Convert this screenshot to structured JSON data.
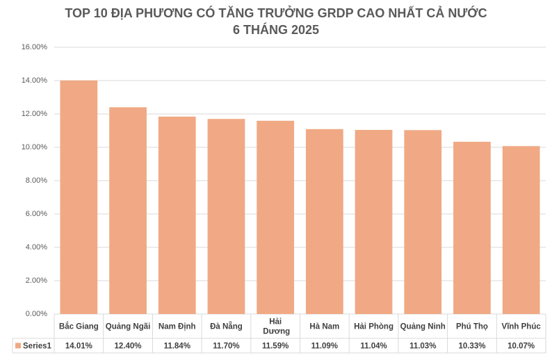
{
  "chart_data": {
    "type": "bar",
    "title": "TOP 10 ĐỊA PHƯƠNG CÓ TĂNG TRƯỞNG GRDP CAO NHẤT CẢ NƯỚC",
    "subtitle": "6 THÁNG 2025",
    "categories": [
      "Bắc Giang",
      "Quảng Ngãi",
      "Nam Định",
      "Đà Nẵng",
      "Hải Dương",
      "Hà Nam",
      "Hải Phòng",
      "Quảng Ninh",
      "Phú Thọ",
      "Vĩnh Phúc"
    ],
    "series": [
      {
        "name": "Series1",
        "color": "#f0a984",
        "values": [
          14.01,
          12.4,
          11.84,
          11.7,
          11.59,
          11.09,
          11.04,
          11.03,
          10.33,
          10.07
        ],
        "value_labels": [
          "14.01%",
          "12.40%",
          "11.84%",
          "11.70%",
          "11.59%",
          "11.09%",
          "11.04%",
          "11.03%",
          "10.33%",
          "10.07%"
        ]
      }
    ],
    "ylim": [
      0,
      16
    ],
    "yticks": [
      {
        "value": 0,
        "label": "0.00%"
      },
      {
        "value": 2,
        "label": "2.00%"
      },
      {
        "value": 4,
        "label": "4.00%"
      },
      {
        "value": 6,
        "label": "6.00%"
      },
      {
        "value": 8,
        "label": "8.00%"
      },
      {
        "value": 10,
        "label": "10.00%"
      },
      {
        "value": 12,
        "label": "12.00%"
      },
      {
        "value": 14,
        "label": "14.00%"
      },
      {
        "value": 16,
        "label": "16.00%"
      }
    ],
    "grid": true
  }
}
